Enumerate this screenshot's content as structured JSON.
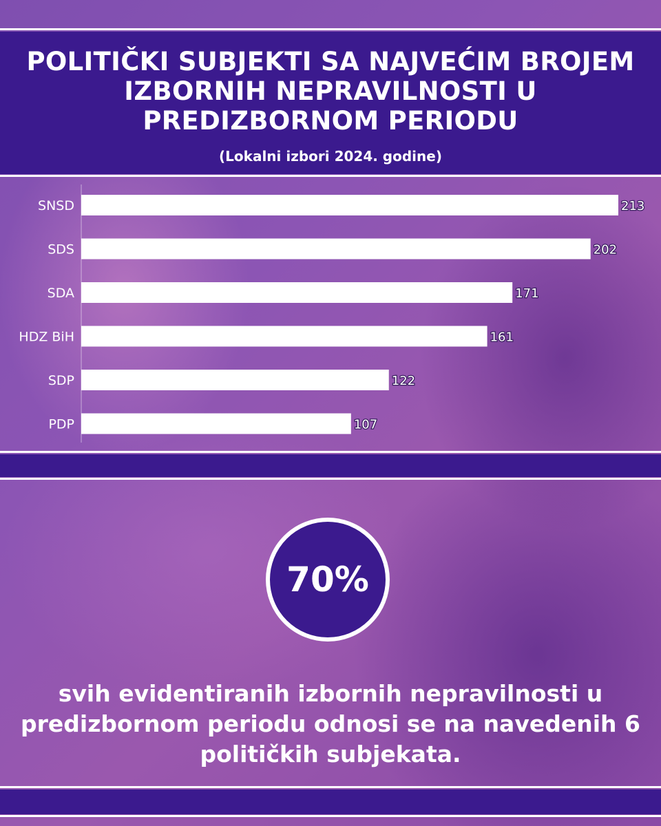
{
  "header": {
    "title": "POLITIČKI SUBJEKTI SA NAJVEĆIM BROJEM IZBORNIH NEPRAVILNOSTI U PREDIZBORNOM PERIODU",
    "subtitle": "(Lokalni izbori 2024. godine)"
  },
  "chart_data": {
    "type": "bar",
    "orientation": "horizontal",
    "categories": [
      "SNSD",
      "SDS",
      "SDA",
      "HDZ BiH",
      "SDP",
      "PDP"
    ],
    "values": [
      213,
      202,
      171,
      161,
      122,
      107
    ],
    "data_labels": [
      "213",
      "202",
      "171",
      "161",
      "122",
      "107"
    ],
    "xlim": [
      0,
      213
    ],
    "grid": false,
    "legend": "none",
    "bar_color": "#ffffff",
    "label_color": "#ffffff"
  },
  "stat": {
    "value": "70%",
    "text": "svih evidentiranih izbornih nepravilnosti u predizbornom periodu odnosi se na navedenih 6 političkih subjekata."
  },
  "colors": {
    "band": "#3b1a8e",
    "rule": "#ffffff",
    "text": "#ffffff"
  }
}
